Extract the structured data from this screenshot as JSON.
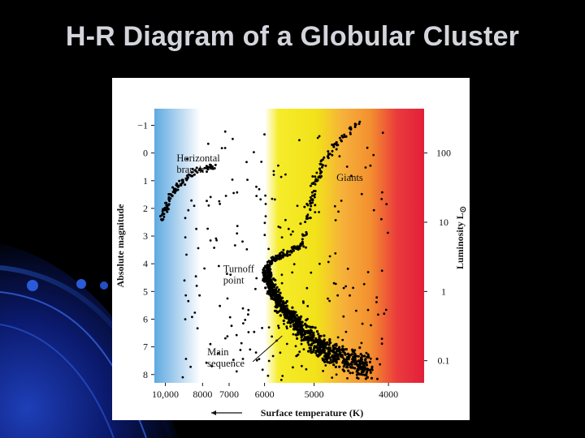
{
  "slide": {
    "title": "H-R Diagram of a Globular Cluster"
  },
  "chart_data": {
    "type": "scatter",
    "title": "",
    "xlabel": "Surface temperature (K)",
    "ylabel": "Absolute magnitude",
    "y2label": "Luminosity L",
    "y2label_symbol": "⊙",
    "x_axis_direction": "decreasing temperature to the right",
    "x_tick_labels": [
      "10,000",
      "8000",
      "7000",
      "6000",
      "5000",
      "4000"
    ],
    "x_ticks_K": [
      10000,
      8000,
      7000,
      6000,
      5000,
      4000
    ],
    "y_ticks": [
      -1,
      0,
      1,
      2,
      3,
      4,
      5,
      6,
      7,
      8
    ],
    "y_tick_labels": [
      "−1",
      "0",
      "1",
      "2",
      "3",
      "4",
      "5",
      "6",
      "7",
      "8"
    ],
    "ylim": [
      -1.6,
      8.3
    ],
    "y_inverted": true,
    "y2_ticks": [
      {
        "value": 100,
        "magnitude": 0
      },
      {
        "value": 10,
        "magnitude": 2.5
      },
      {
        "value": 1,
        "magnitude": 5
      },
      {
        "value": 0.1,
        "magnitude": 7.5
      }
    ],
    "y2_tick_labels": [
      "100",
      "10",
      "1",
      "0.1"
    ],
    "background_bands": [
      {
        "color": "#5da9e0",
        "meaning": "hot blue"
      },
      {
        "color": "#ffffff",
        "meaning": "white"
      },
      {
        "color": "#f2ea12",
        "meaning": "yellow"
      },
      {
        "color": "#f6a032",
        "meaning": "orange"
      },
      {
        "color": "#e8253a",
        "meaning": "red"
      }
    ],
    "annotations": [
      {
        "text_lines": [
          "Horizontal",
          "branch"
        ],
        "temp_K": 9300,
        "mag": 0.3
      },
      {
        "text_lines": [
          "Giants"
        ],
        "temp_K": 4650,
        "mag": 1.0
      },
      {
        "text_lines": [
          "Turnoff",
          "point"
        ],
        "temp_K": 7200,
        "mag": 4.3
      },
      {
        "text_lines": [
          "Main",
          "sequence"
        ],
        "temp_K": 7800,
        "mag": 7.3
      }
    ],
    "branches": [
      {
        "name": "Main sequence",
        "ridge": [
          {
            "temp_K": 5950,
            "mag": 4.3
          },
          {
            "temp_K": 5800,
            "mag": 5.0
          },
          {
            "temp_K": 5550,
            "mag": 5.7
          },
          {
            "temp_K": 5250,
            "mag": 6.3
          },
          {
            "temp_K": 4950,
            "mag": 6.9
          },
          {
            "temp_K": 4600,
            "mag": 7.4
          },
          {
            "temp_K": 4200,
            "mag": 7.8
          }
        ],
        "spread_mag": 0.45,
        "density": "high"
      },
      {
        "name": "Subgiant branch",
        "ridge": [
          {
            "temp_K": 5950,
            "mag": 4.2
          },
          {
            "temp_K": 5750,
            "mag": 3.8
          },
          {
            "temp_K": 5450,
            "mag": 3.6
          },
          {
            "temp_K": 5200,
            "mag": 3.3
          }
        ],
        "spread_mag": 0.15,
        "density": "medium"
      },
      {
        "name": "Giants",
        "ridge": [
          {
            "temp_K": 5200,
            "mag": 3.2
          },
          {
            "temp_K": 5100,
            "mag": 2.2
          },
          {
            "temp_K": 5000,
            "mag": 1.2
          },
          {
            "temp_K": 4850,
            "mag": 0.3
          },
          {
            "temp_K": 4600,
            "mag": -0.5
          },
          {
            "temp_K": 4350,
            "mag": -1.1
          }
        ],
        "spread_mag": 0.15,
        "density": "medium"
      },
      {
        "name": "Horizontal branch",
        "ridge": [
          {
            "temp_K": 10150,
            "mag": 2.4
          },
          {
            "temp_K": 9850,
            "mag": 1.8
          },
          {
            "temp_K": 9450,
            "mag": 1.3
          },
          {
            "temp_K": 8900,
            "mag": 1.0
          },
          {
            "temp_K": 8200,
            "mag": 0.6
          },
          {
            "temp_K": 7550,
            "mag": 0.5
          }
        ],
        "spread_mag": 0.15,
        "density": "medium"
      },
      {
        "name": "Field scatter",
        "region": {
          "temp_K_range": [
            9000,
            4000
          ],
          "mag_range": [
            -1.2,
            8.2
          ]
        },
        "density": "sparse"
      }
    ]
  }
}
